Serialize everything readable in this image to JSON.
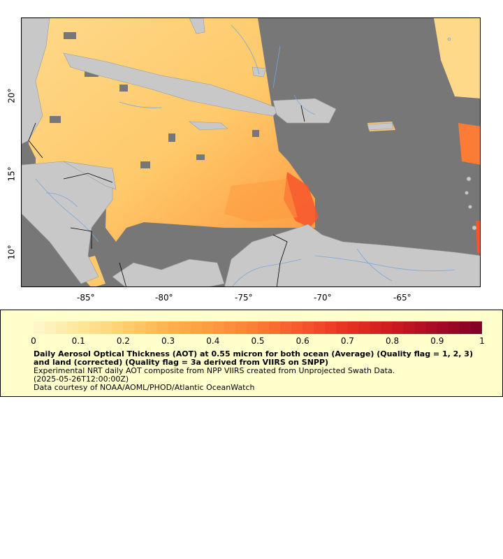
{
  "map": {
    "x_ticks": [
      "-85°",
      "-80°",
      "-75°",
      "-70°",
      "-65°"
    ],
    "y_ticks": [
      "20°",
      "15°",
      "10°"
    ],
    "colors": {
      "ocean_nodata": "#777777",
      "land": "#c8c8c8",
      "rivers": "#7aa6d6",
      "borders": "#000000"
    }
  },
  "legend": {
    "colorbar_ticks": [
      "0",
      "0.1",
      "0.2",
      "0.3",
      "0.4",
      "0.5",
      "0.6",
      "0.7",
      "0.8",
      "0.9",
      "1"
    ],
    "colorbar_stops": [
      "#fff7cc",
      "#fee79a",
      "#fed06f",
      "#feb24c",
      "#fd9a3f",
      "#fc7b35",
      "#f7552b",
      "#e53222",
      "#cc1a20",
      "#a80a26",
      "#800026"
    ],
    "title": "Daily Aerosol Optical Thickness (AOT) at 0.55 micron for both ocean (Average) (Quality flag = 1, 2, 3) and land (corrected) (Quality flag = 3a derived from VIIRS on SNPP)",
    "description": "Experimental NRT daily AOT composite from NPP VIIRS created from Unprojected Swath Data.",
    "timestamp": "(2025-05-26T12:00:00Z)",
    "credit": "Data courtesy of NOAA/AOML/PHOD/Atlantic OceanWatch"
  }
}
